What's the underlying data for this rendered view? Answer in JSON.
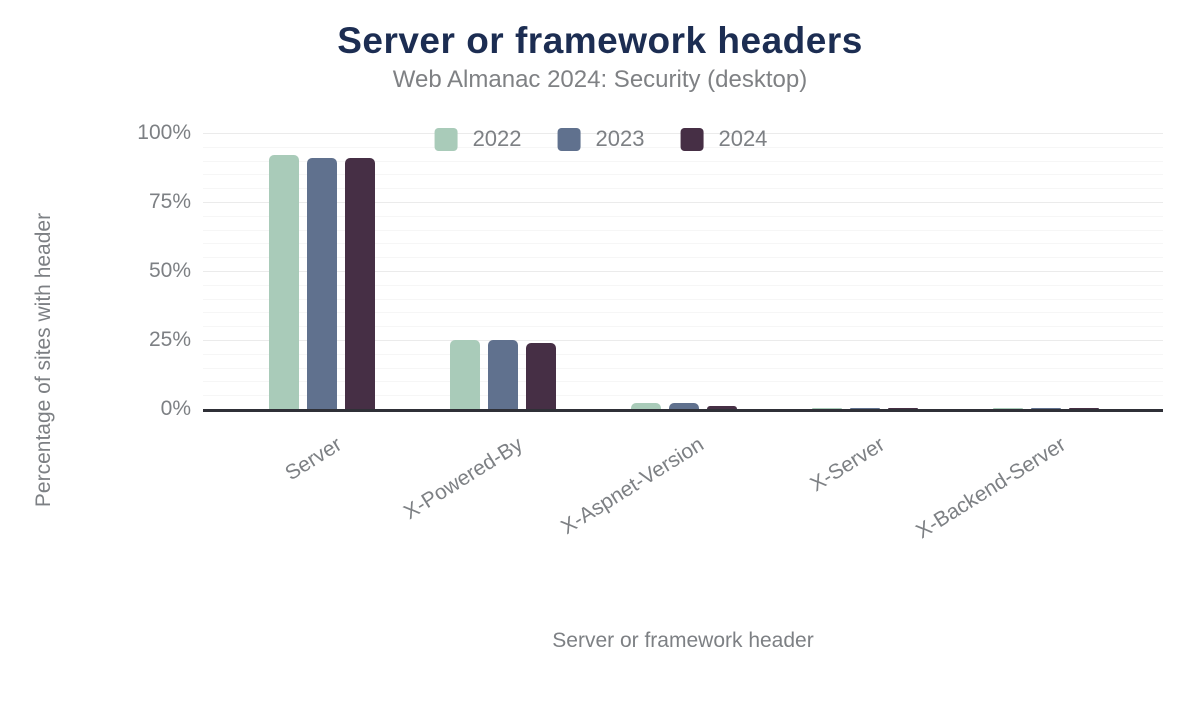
{
  "header": {
    "title": "Server or framework headers",
    "subtitle": "Web Almanac 2024: Security (desktop)"
  },
  "chart_data": {
    "type": "bar",
    "title": "Server or framework headers",
    "subtitle": "Web Almanac 2024: Security (desktop)",
    "categories": [
      "Server",
      "X-Powered-By",
      "X-Aspnet-Version",
      "X-Server",
      "X-Backend-Server"
    ],
    "series": [
      {
        "name": "2022",
        "color": "#a9cbb9",
        "values": [
          92,
          25,
          2,
          0.4,
          0.3
        ]
      },
      {
        "name": "2023",
        "color": "#60718e",
        "values": [
          91,
          25,
          2,
          0.4,
          0.3
        ]
      },
      {
        "name": "2024",
        "color": "#462f45",
        "values": [
          91,
          24,
          1,
          0.3,
          0.3
        ]
      }
    ],
    "xlabel": "Server or framework header",
    "ylabel": "Percentage of sites with header",
    "ylim": [
      0,
      100
    ],
    "yticks": [
      0,
      25,
      50,
      75,
      100
    ],
    "ytick_labels": [
      "0%",
      "25%",
      "50%",
      "75%",
      "100%"
    ],
    "minor_grid_step": 5,
    "grid": true,
    "legend_position": "top-center"
  },
  "colors": {
    "title_text": "#1c2d52",
    "muted_text": "#7d8084",
    "axis_line": "#2f3037",
    "grid_major": "#ebebeb",
    "grid_minor": "#f6f6f6",
    "background": "#ffffff"
  }
}
